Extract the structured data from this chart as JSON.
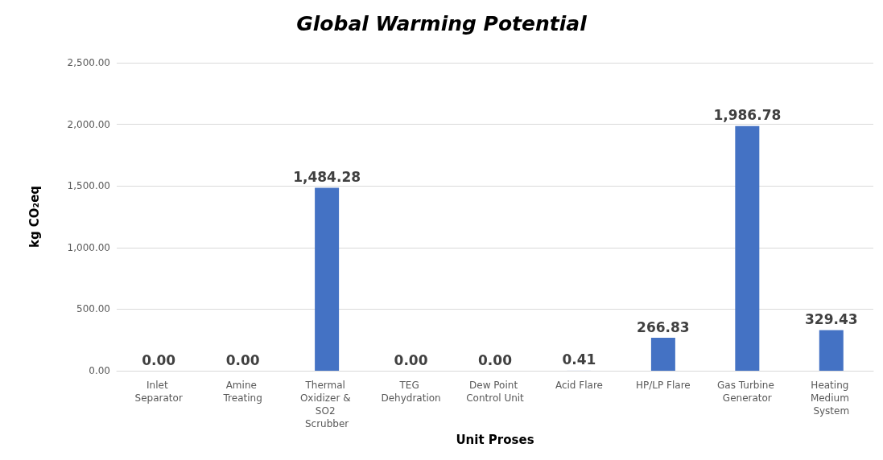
{
  "chart_data": {
    "type": "bar",
    "title": "Global Warming Potential",
    "xlabel": "Unit Proses",
    "ylabel": "kg CO₂eq",
    "categories": [
      "Inlet Separator",
      "Amine Treating",
      "Thermal Oxidizer & SO2 Scrubber",
      "TEG Dehydration",
      "Dew Point Control Unit",
      "Acid Flare",
      "HP/LP Flare",
      "Gas Turbine Generator",
      "Heating Medium System"
    ],
    "values": [
      0,
      0,
      1484.28,
      0,
      0,
      0.41,
      266.83,
      1986.78,
      329.43
    ],
    "value_labels": [
      "0.00",
      "0.00",
      "1,484.28",
      "0.00",
      "0.00",
      "0.41",
      "266.83",
      "1,986.78",
      "329.43"
    ],
    "color": "#4472c4",
    "ylim": [
      0,
      2500
    ],
    "yticks": [
      {
        "value": 0,
        "label": "0.00"
      },
      {
        "value": 500,
        "label": "500.00"
      },
      {
        "value": 1000,
        "label": "1,000.00"
      },
      {
        "value": 1500,
        "label": "1,500.00"
      },
      {
        "value": 2000,
        "label": "2,000.00"
      },
      {
        "value": 2500,
        "label": "2,500.00"
      }
    ],
    "grid": "y"
  }
}
